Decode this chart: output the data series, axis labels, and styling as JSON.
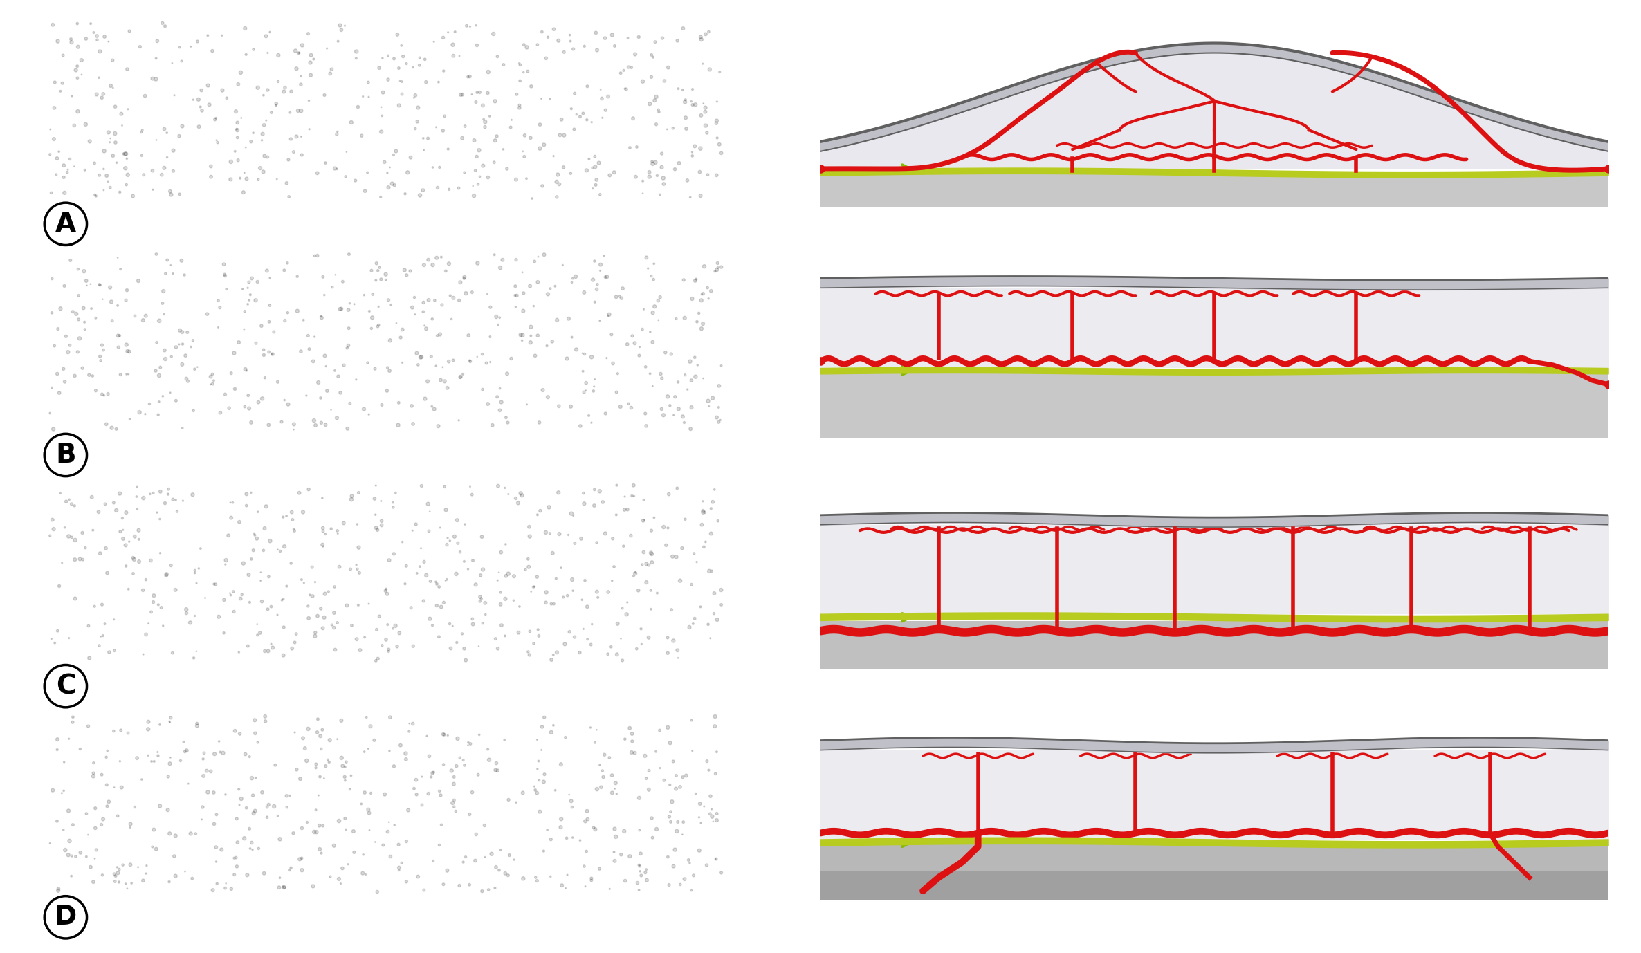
{
  "bg_color": "#ffffff",
  "skin_color": "#d8d8d8",
  "skin_outline_color": "#606060",
  "tissue_color": "#f0f0f0",
  "fascia_color": "#b8cc20",
  "vessel_color": "#dd1111",
  "deep_bg_color": "#e0e0e0",
  "labels": [
    "A",
    "B",
    "C",
    "D"
  ],
  "arrow_color": "#88bb00",
  "label_color": "#000000"
}
